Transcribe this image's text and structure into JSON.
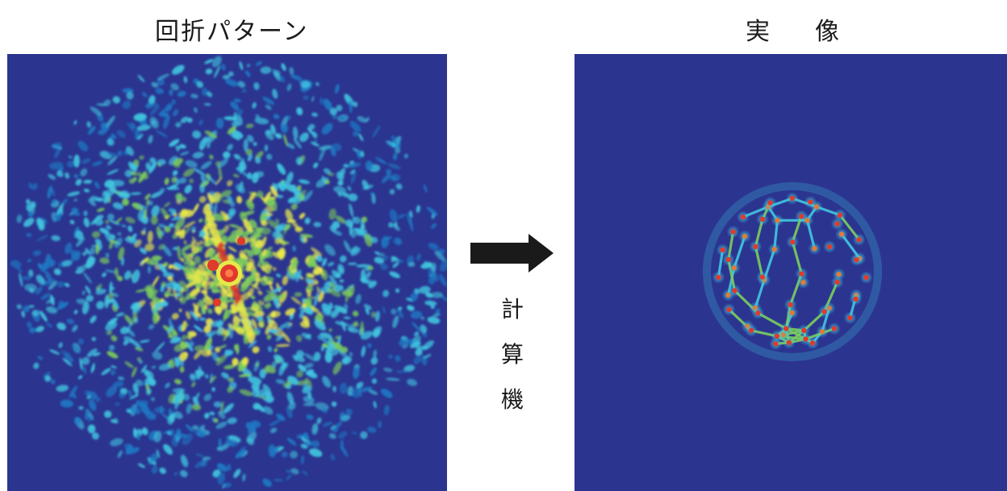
{
  "left": {
    "title": "回折パターン"
  },
  "right": {
    "title_parts": [
      "実",
      "像"
    ]
  },
  "process": {
    "label_chars": [
      "計",
      "算",
      "機"
    ]
  },
  "colors": {
    "background": "#2b3590",
    "low": "#1f79c4",
    "mid": "#41c7e0",
    "green": "#7ccf5c",
    "yellow": "#e8e84a",
    "red": "#e03a2c",
    "arrow": "#1a1a1a"
  }
}
